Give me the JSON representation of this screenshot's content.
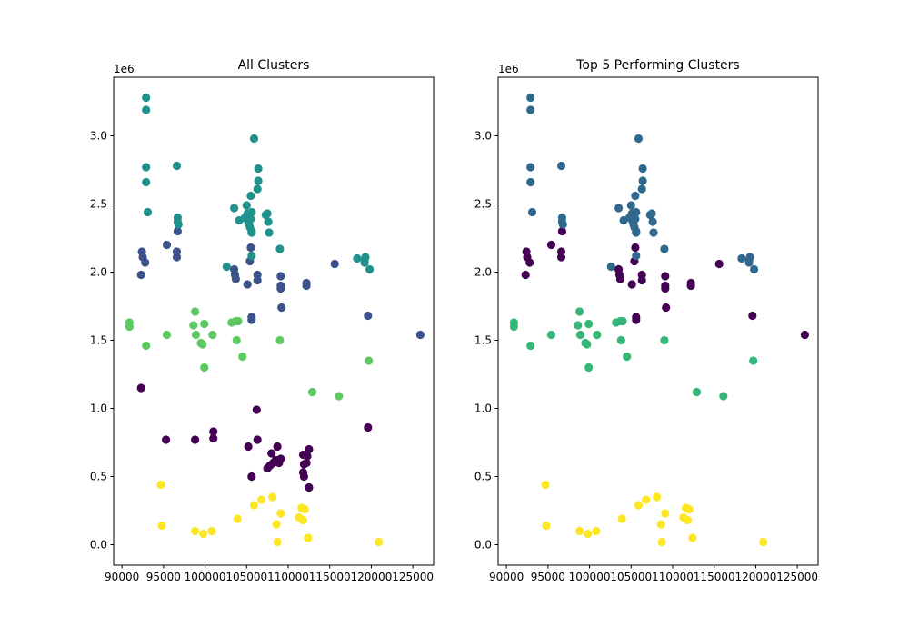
{
  "chart_data": [
    {
      "type": "scatter",
      "title": "All Clusters",
      "xlabel": "",
      "ylabel": "",
      "y_offset_label": "1e6",
      "xlim": [
        89000,
        127500
      ],
      "ylim": [
        -150000,
        3430000
      ],
      "xticks": [
        90000,
        95000,
        100000,
        105000,
        110000,
        115000,
        120000,
        125000
      ],
      "xtick_labels": [
        "90000",
        "95000",
        "100000",
        "105000",
        "110000",
        "115000",
        "120000",
        "125000"
      ],
      "yticks": [
        0,
        500000,
        1000000,
        1500000,
        2000000,
        2500000,
        3000000
      ],
      "ytick_labels": [
        "0.0",
        "0.5",
        "1.0",
        "1.5",
        "2.0",
        "2.5",
        "3.0"
      ],
      "grid": false,
      "series": [
        {
          "color": "#440154",
          "points": [
            [
              92300,
              1150000
            ],
            [
              95300,
              770000
            ],
            [
              98800,
              770000
            ],
            [
              101000,
              830000
            ],
            [
              101000,
              780000
            ],
            [
              105200,
              720000
            ],
            [
              105600,
              500000
            ],
            [
              106200,
              990000
            ],
            [
              106300,
              770000
            ],
            [
              107500,
              560000
            ],
            [
              107800,
              580000
            ],
            [
              108000,
              670000
            ],
            [
              108200,
              600000
            ],
            [
              108500,
              620000
            ],
            [
              108700,
              720000
            ],
            [
              108900,
              600000
            ],
            [
              109100,
              630000
            ],
            [
              111800,
              660000
            ],
            [
              111800,
              530000
            ],
            [
              111900,
              500000
            ],
            [
              111900,
              590000
            ],
            [
              112200,
              600000
            ],
            [
              112300,
              650000
            ],
            [
              112500,
              700000
            ],
            [
              112500,
              420000
            ],
            [
              119600,
              860000
            ]
          ]
        },
        {
          "color": "#3b528b",
          "points": [
            [
              92300,
              1980000
            ],
            [
              92400,
              2150000
            ],
            [
              92500,
              2110000
            ],
            [
              92800,
              2070000
            ],
            [
              95400,
              2200000
            ],
            [
              96600,
              2150000
            ],
            [
              96600,
              2110000
            ],
            [
              96700,
              2300000
            ],
            [
              103500,
              2020000
            ],
            [
              103600,
              1980000
            ],
            [
              103700,
              1950000
            ],
            [
              105100,
              1910000
            ],
            [
              105400,
              2080000
            ],
            [
              105500,
              2180000
            ],
            [
              105600,
              1670000
            ],
            [
              105600,
              1650000
            ],
            [
              106300,
              1980000
            ],
            [
              106300,
              1940000
            ],
            [
              109100,
              1970000
            ],
            [
              109100,
              1900000
            ],
            [
              109100,
              1880000
            ],
            [
              109200,
              1740000
            ],
            [
              112200,
              1920000
            ],
            [
              112200,
              1900000
            ],
            [
              115600,
              2060000
            ],
            [
              119600,
              1680000
            ],
            [
              125900,
              1540000
            ]
          ]
        },
        {
          "color": "#21918c",
          "points": [
            [
              92900,
              3280000
            ],
            [
              92900,
              3190000
            ],
            [
              92900,
              2770000
            ],
            [
              92900,
              2660000
            ],
            [
              93100,
              2440000
            ],
            [
              96600,
              2780000
            ],
            [
              96700,
              2400000
            ],
            [
              96700,
              2370000
            ],
            [
              96800,
              2350000
            ],
            [
              103500,
              2470000
            ],
            [
              104100,
              2380000
            ],
            [
              104800,
              2400000
            ],
            [
              105000,
              2490000
            ],
            [
              105100,
              2430000
            ],
            [
              105200,
              2370000
            ],
            [
              105300,
              2350000
            ],
            [
              105400,
              2330000
            ],
            [
              105500,
              2390000
            ],
            [
              105600,
              2300000
            ],
            [
              105600,
              2290000
            ],
            [
              105500,
              2560000
            ],
            [
              105600,
              2440000
            ],
            [
              105900,
              2980000
            ],
            [
              106300,
              2610000
            ],
            [
              106400,
              2760000
            ],
            [
              106400,
              2670000
            ],
            [
              107300,
              2420000
            ],
            [
              107500,
              2430000
            ],
            [
              107600,
              2370000
            ],
            [
              107700,
              2290000
            ],
            [
              109000,
              2170000
            ],
            [
              105600,
              2120000
            ],
            [
              102600,
              2040000
            ],
            [
              118300,
              2100000
            ],
            [
              119200,
              2090000
            ],
            [
              119300,
              2110000
            ],
            [
              119200,
              2070000
            ],
            [
              119800,
              2020000
            ]
          ]
        },
        {
          "color": "#5ec962",
          "points": [
            [
              90900,
              1630000
            ],
            [
              90900,
              1600000
            ],
            [
              92900,
              1460000
            ],
            [
              95400,
              1540000
            ],
            [
              98600,
              1610000
            ],
            [
              98800,
              1710000
            ],
            [
              98900,
              1540000
            ],
            [
              99500,
              1480000
            ],
            [
              99700,
              1470000
            ],
            [
              99900,
              1620000
            ],
            [
              99900,
              1300000
            ],
            [
              100900,
              1540000
            ],
            [
              103200,
              1630000
            ],
            [
              103700,
              1640000
            ],
            [
              103800,
              1500000
            ],
            [
              104000,
              1640000
            ],
            [
              104500,
              1380000
            ],
            [
              109000,
              1500000
            ],
            [
              112900,
              1120000
            ],
            [
              116100,
              1090000
            ],
            [
              119700,
              1350000
            ]
          ]
        },
        {
          "color": "#fde725",
          "points": [
            [
              94700,
              440000
            ],
            [
              94800,
              140000
            ],
            [
              98800,
              100000
            ],
            [
              99800,
              80000
            ],
            [
              100800,
              100000
            ],
            [
              103900,
              190000
            ],
            [
              105900,
              290000
            ],
            [
              106800,
              330000
            ],
            [
              108100,
              350000
            ],
            [
              108600,
              150000
            ],
            [
              108700,
              20000
            ],
            [
              109100,
              230000
            ],
            [
              111300,
              200000
            ],
            [
              111600,
              270000
            ],
            [
              111800,
              180000
            ],
            [
              112000,
              260000
            ],
            [
              112400,
              50000
            ],
            [
              120900,
              20000
            ]
          ]
        }
      ]
    },
    {
      "type": "scatter",
      "title": "Top 5 Performing Clusters",
      "xlabel": "",
      "ylabel": "",
      "y_offset_label": "1e6",
      "xlim": [
        89000,
        127500
      ],
      "ylim": [
        -150000,
        3430000
      ],
      "xticks": [
        90000,
        95000,
        100000,
        105000,
        110000,
        115000,
        120000,
        125000
      ],
      "xtick_labels": [
        "90000",
        "95000",
        "100000",
        "105000",
        "110000",
        "115000",
        "120000",
        "125000"
      ],
      "yticks": [
        0,
        500000,
        1000000,
        1500000,
        2000000,
        2500000,
        3000000
      ],
      "ytick_labels": [
        "0.0",
        "0.5",
        "1.0",
        "1.5",
        "2.0",
        "2.5",
        "3.0"
      ],
      "grid": false,
      "series": [
        {
          "color": "#440154",
          "points": [
            [
              92300,
              1980000
            ],
            [
              92400,
              2150000
            ],
            [
              92500,
              2110000
            ],
            [
              92800,
              2070000
            ],
            [
              95400,
              2200000
            ],
            [
              96600,
              2150000
            ],
            [
              96600,
              2110000
            ],
            [
              96700,
              2300000
            ],
            [
              103500,
              2020000
            ],
            [
              103600,
              1980000
            ],
            [
              103700,
              1950000
            ],
            [
              105100,
              1910000
            ],
            [
              105400,
              2080000
            ],
            [
              105500,
              2180000
            ],
            [
              105600,
              1670000
            ],
            [
              105600,
              1650000
            ],
            [
              106300,
              1980000
            ],
            [
              106300,
              1940000
            ],
            [
              109100,
              1970000
            ],
            [
              109100,
              1900000
            ],
            [
              109100,
              1880000
            ],
            [
              109200,
              1740000
            ],
            [
              112200,
              1920000
            ],
            [
              112200,
              1900000
            ],
            [
              115600,
              2060000
            ],
            [
              119600,
              1680000
            ],
            [
              125900,
              1540000
            ]
          ]
        },
        {
          "color": "#31688e",
          "points": [
            [
              92900,
              3280000
            ],
            [
              92900,
              3190000
            ],
            [
              92900,
              2770000
            ],
            [
              92900,
              2660000
            ],
            [
              93100,
              2440000
            ],
            [
              96600,
              2780000
            ],
            [
              96700,
              2400000
            ],
            [
              96700,
              2370000
            ],
            [
              96800,
              2350000
            ],
            [
              103500,
              2470000
            ],
            [
              104100,
              2380000
            ],
            [
              104800,
              2400000
            ],
            [
              105000,
              2490000
            ],
            [
              105100,
              2430000
            ],
            [
              105200,
              2370000
            ],
            [
              105300,
              2350000
            ],
            [
              105400,
              2330000
            ],
            [
              105500,
              2390000
            ],
            [
              105600,
              2300000
            ],
            [
              105600,
              2290000
            ],
            [
              105500,
              2560000
            ],
            [
              105600,
              2440000
            ],
            [
              105900,
              2980000
            ],
            [
              106300,
              2610000
            ],
            [
              106400,
              2760000
            ],
            [
              106400,
              2670000
            ],
            [
              107300,
              2420000
            ],
            [
              107500,
              2430000
            ],
            [
              107600,
              2370000
            ],
            [
              107700,
              2290000
            ],
            [
              109000,
              2170000
            ],
            [
              105600,
              2120000
            ],
            [
              102600,
              2040000
            ],
            [
              118300,
              2100000
            ],
            [
              119200,
              2090000
            ],
            [
              119300,
              2110000
            ],
            [
              119200,
              2070000
            ],
            [
              119800,
              2020000
            ]
          ]
        },
        {
          "color": "#35b779",
          "points": [
            [
              90900,
              1630000
            ],
            [
              90900,
              1600000
            ],
            [
              92900,
              1460000
            ],
            [
              95400,
              1540000
            ],
            [
              98600,
              1610000
            ],
            [
              98800,
              1710000
            ],
            [
              98900,
              1540000
            ],
            [
              99500,
              1480000
            ],
            [
              99700,
              1470000
            ],
            [
              99900,
              1620000
            ],
            [
              99900,
              1300000
            ],
            [
              100900,
              1540000
            ],
            [
              103200,
              1630000
            ],
            [
              103700,
              1640000
            ],
            [
              103800,
              1500000
            ],
            [
              104000,
              1640000
            ],
            [
              104500,
              1380000
            ],
            [
              109000,
              1500000
            ],
            [
              112900,
              1120000
            ],
            [
              116100,
              1090000
            ],
            [
              119700,
              1350000
            ]
          ]
        },
        {
          "color": "#fde725",
          "points": [
            [
              94700,
              440000
            ],
            [
              94800,
              140000
            ],
            [
              98800,
              100000
            ],
            [
              99800,
              80000
            ],
            [
              100800,
              100000
            ],
            [
              103900,
              190000
            ],
            [
              105900,
              290000
            ],
            [
              106800,
              330000
            ],
            [
              108100,
              350000
            ],
            [
              108600,
              150000
            ],
            [
              108700,
              20000
            ],
            [
              109100,
              230000
            ],
            [
              111300,
              200000
            ],
            [
              111600,
              270000
            ],
            [
              111800,
              180000
            ],
            [
              112000,
              260000
            ],
            [
              112400,
              50000
            ],
            [
              120900,
              20000
            ]
          ]
        }
      ]
    }
  ]
}
